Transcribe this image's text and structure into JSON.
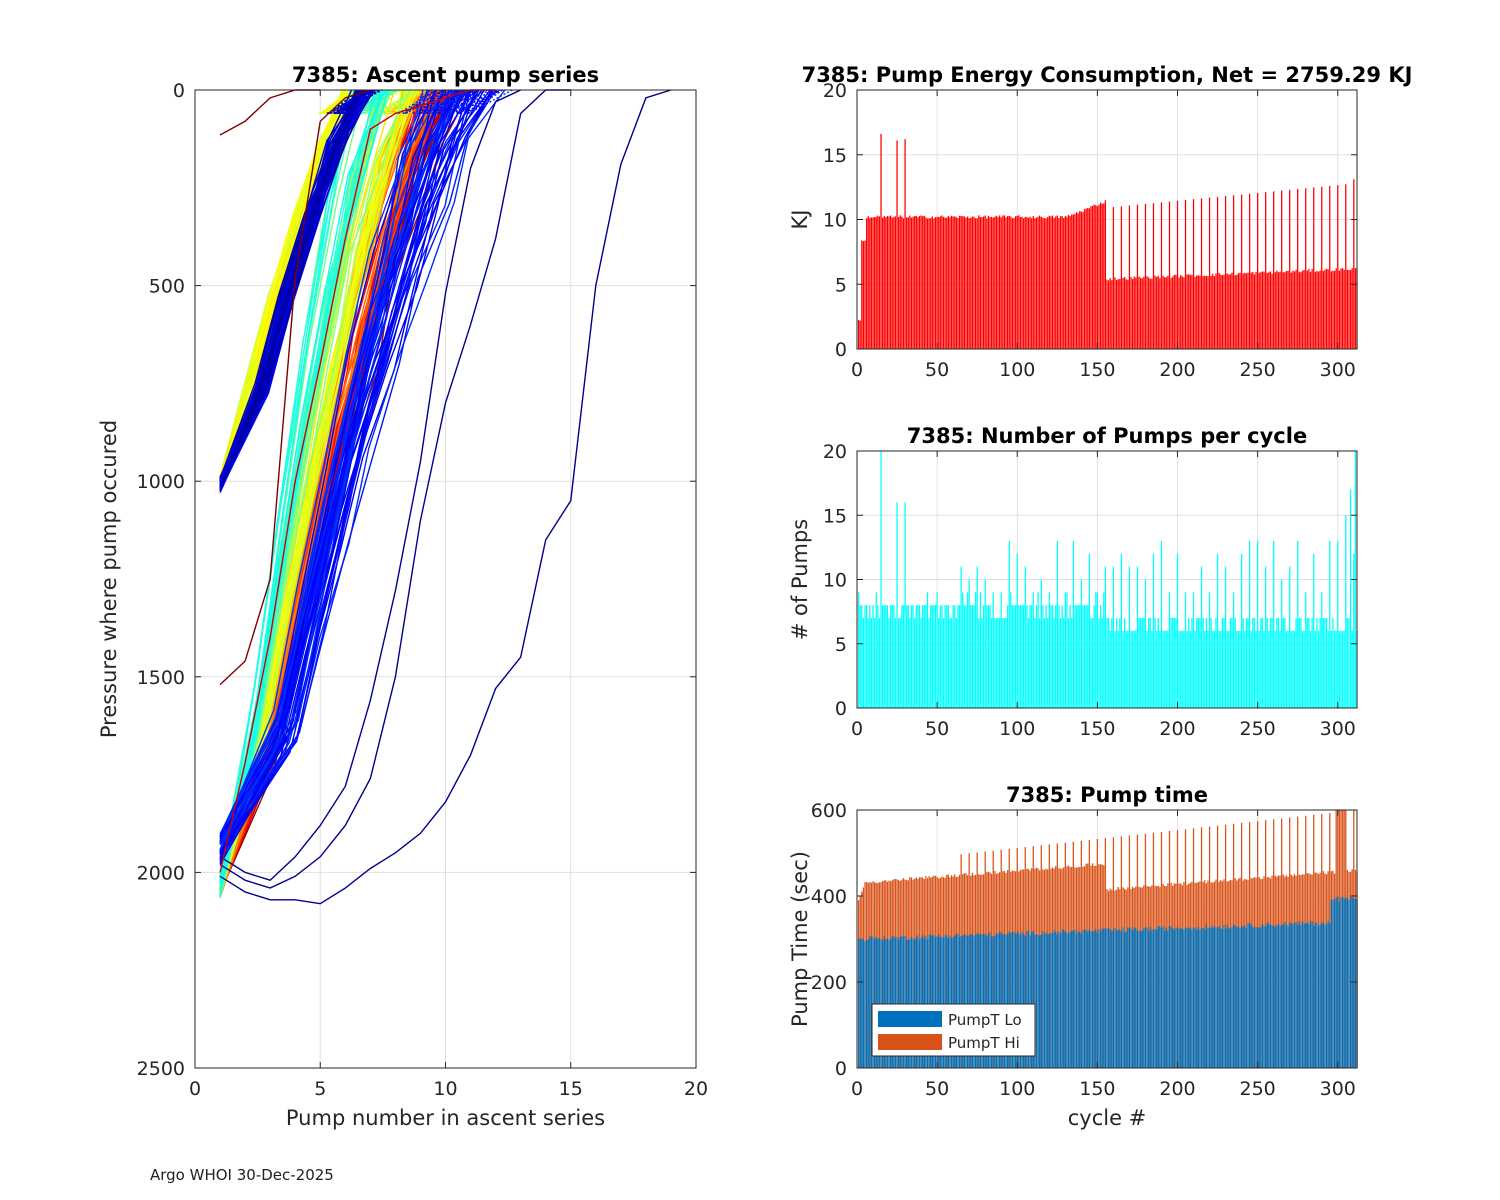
{
  "footer": "Argo WHOI 30-Dec-2025",
  "colors": {
    "energy": "#ff0000",
    "pumps": "#00ffff",
    "pump_lo": "#0072bd",
    "pump_hi": "#d95319",
    "grid": "#e0e0e0",
    "axis": "#262626"
  },
  "chart_data": [
    {
      "id": "ascent",
      "type": "line",
      "title": "7385: Ascent pump series",
      "xlabel": "Pump number in ascent series",
      "ylabel": "Pressure where pump occured",
      "xlim": [
        0,
        20
      ],
      "ylim": [
        0,
        2500
      ],
      "y_reversed": true,
      "xticks": [
        0,
        5,
        10,
        15,
        20
      ],
      "yticks": [
        0,
        500,
        1000,
        1500,
        2000,
        2500
      ],
      "colormap": "jet",
      "grid": true,
      "series": [
        {
          "name": "deep-dark-blue-1",
          "color": "#00008f",
          "x": [
            1,
            2,
            3,
            4,
            5,
            6,
            7,
            8,
            9,
            10,
            11,
            12,
            13,
            14,
            15,
            16,
            17,
            18,
            19
          ],
          "y": [
            2010,
            2050,
            2070,
            2070,
            2080,
            2040,
            1990,
            1950,
            1900,
            1820,
            1700,
            1530,
            1450,
            1150,
            1050,
            500,
            190,
            20,
            0
          ]
        },
        {
          "name": "deep-dark-blue-2",
          "color": "#00008f",
          "x": [
            1,
            2,
            3,
            4,
            5,
            6,
            7,
            8,
            9,
            10,
            11,
            12,
            13,
            14,
            15
          ],
          "y": [
            1980,
            2020,
            2040,
            2010,
            1960,
            1880,
            1760,
            1500,
            1100,
            800,
            600,
            380,
            60,
            0,
            0
          ]
        },
        {
          "name": "deep-dark-blue-3",
          "color": "#00008f",
          "x": [
            1,
            2,
            3,
            4,
            5,
            6,
            7,
            8,
            9,
            10,
            11,
            12,
            13
          ],
          "y": [
            1960,
            2000,
            2020,
            1960,
            1880,
            1780,
            1560,
            1280,
            950,
            520,
            200,
            30,
            0
          ]
        },
        {
          "name": "dark-red-1",
          "color": "#800000",
          "x": [
            1,
            2,
            3,
            4,
            5,
            6,
            7
          ],
          "y": [
            1520,
            1460,
            1250,
            480,
            80,
            20,
            0
          ]
        },
        {
          "name": "dark-red-2",
          "color": "#800000",
          "x": [
            1,
            2,
            3,
            4,
            5
          ],
          "y": [
            115,
            80,
            20,
            0,
            0
          ]
        },
        {
          "name": "red-1",
          "color": "#d00000",
          "x": [
            1,
            2,
            3,
            4,
            5,
            6,
            7,
            8,
            9,
            10,
            11,
            12
          ],
          "y": [
            2000,
            1720,
            1400,
            1000,
            700,
            380,
            100,
            60,
            40,
            20,
            0,
            0
          ]
        }
      ],
      "families": [
        {
          "name": "green-shallow",
          "color_range": [
            "#00ff80",
            "#40ffc0"
          ],
          "count": 25,
          "start_y": 990
        },
        {
          "name": "deep-rainbow",
          "color_range": [
            "#ff0000",
            "#00ffff"
          ],
          "count": 150,
          "start_y": 2010
        },
        {
          "name": "dark-blue-shallow",
          "color_range": [
            "#000080",
            "#0040ff"
          ],
          "count": 60,
          "start_y": 1010
        },
        {
          "name": "blue-deep",
          "color_range": [
            "#0000ff",
            "#0060ff"
          ],
          "count": 40,
          "start_y": 1920
        }
      ]
    },
    {
      "id": "energy",
      "type": "bar",
      "title": "7385: Pump Energy Consumption,  Net = 2759.29 KJ",
      "xlabel": "",
      "ylabel": "KJ",
      "xlim": [
        0,
        312
      ],
      "ylim": [
        0,
        20
      ],
      "xticks": [
        0,
        50,
        100,
        150,
        200,
        250,
        300
      ],
      "yticks": [
        0,
        5,
        10,
        15,
        20
      ],
      "grid": true,
      "notable_values": [
        {
          "cycle": 15,
          "value": 16.6
        },
        {
          "cycle": 25,
          "value": 16.1
        },
        {
          "cycle": 30,
          "value": 16.2
        },
        {
          "cycle": 310,
          "value": 13.1
        }
      ],
      "segments": [
        {
          "from": 1,
          "to": 2,
          "value": 2.3
        },
        {
          "from": 3,
          "to": 5,
          "value": 8.3
        },
        {
          "from": 6,
          "to": 30,
          "value": 10.2
        },
        {
          "from": 31,
          "to": 130,
          "value": 10.2
        },
        {
          "from": 131,
          "to": 155,
          "value": 11.0
        },
        {
          "from": 156,
          "to": 312,
          "value": 5.6
        }
      ],
      "spikes_after_155": {
        "every": 5,
        "value_start": 10.9,
        "value_end": 12.8
      }
    },
    {
      "id": "pumps",
      "type": "bar",
      "title": "7385: Number of Pumps per cycle",
      "xlabel": "",
      "ylabel": "# of Pumps",
      "xlim": [
        0,
        312
      ],
      "ylim": [
        0,
        20
      ],
      "xticks": [
        0,
        50,
        100,
        150,
        200,
        250,
        300
      ],
      "yticks": [
        0,
        5,
        10,
        15,
        20
      ],
      "grid": true,
      "notable_values": [
        {
          "cycle": 15,
          "value": 20
        },
        {
          "cycle": 25,
          "value": 16
        },
        {
          "cycle": 30,
          "value": 16
        },
        {
          "cycle": 305,
          "value": 15
        },
        {
          "cycle": 308,
          "value": 17
        },
        {
          "cycle": 311,
          "value": 20
        }
      ],
      "base_values": [
        8,
        7,
        8,
        7,
        8,
        9,
        7,
        8
      ],
      "late_base": [
        6,
        7
      ],
      "spike_every": 5,
      "spike_values": [
        9,
        10,
        11,
        12,
        13
      ]
    },
    {
      "id": "pumptime",
      "type": "bar",
      "stacked": true,
      "title": "7385: Pump time",
      "xlabel": "cycle #",
      "ylabel": "Pump Time (sec)",
      "xlim": [
        0,
        312
      ],
      "ylim": [
        0,
        600
      ],
      "xticks": [
        0,
        50,
        100,
        150,
        200,
        250,
        300
      ],
      "yticks": [
        0,
        200,
        400,
        600
      ],
      "legend": [
        "PumpT Lo",
        "PumpT Hi"
      ],
      "legend_position": "bottom-left",
      "grid": true,
      "lo_range": [
        300,
        340
      ],
      "lo_late": 400,
      "total_range": [
        430,
        520
      ],
      "spike_total_range": [
        470,
        600
      ]
    }
  ]
}
